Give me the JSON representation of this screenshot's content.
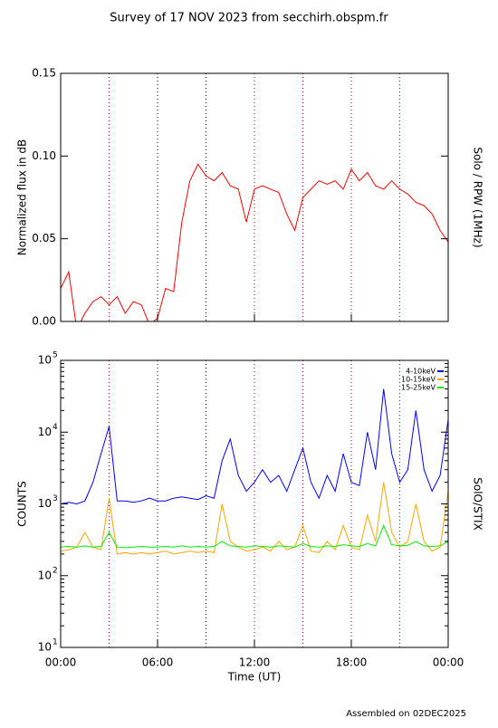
{
  "title": "Survey of 17 NOV 2023 from secchirh.obspm.fr",
  "footer": "Assembled on 02DEC2025",
  "chart_data": [
    {
      "type": "line",
      "ylabel": "Normalized flux in dB",
      "right_label": "Solo / RPW (1MHz)",
      "xlim": [
        0,
        24
      ],
      "xticks": [
        0,
        6,
        12,
        18,
        24
      ],
      "vlines": [
        3,
        6,
        9,
        12,
        15,
        18,
        21
      ],
      "ylim": [
        0,
        0.15
      ],
      "yticks": [
        {
          "value": 0,
          "label": "0.00"
        },
        {
          "value": 0.05,
          "label": "0.05"
        },
        {
          "value": 0.1,
          "label": "0.10"
        },
        {
          "value": 0.15,
          "label": "0.15"
        }
      ],
      "x": [
        0,
        0.5,
        1,
        1.5,
        2,
        2.5,
        3,
        3.5,
        4,
        4.5,
        5,
        5.5,
        6,
        6.5,
        7,
        7.5,
        8,
        8.5,
        9,
        9.5,
        10,
        10.5,
        11,
        11.5,
        12,
        12.5,
        13,
        13.5,
        14,
        14.5,
        15,
        15.5,
        16,
        16.5,
        17,
        17.5,
        18,
        18.5,
        19,
        19.5,
        20,
        20.5,
        21,
        21.5,
        22,
        22.5,
        23,
        23.5,
        24
      ],
      "series": [
        {
          "color": "#ff0000",
          "values": [
            0.02,
            0.03,
            -0.005,
            0.005,
            0.012,
            0.015,
            0.01,
            0.015,
            0.005,
            0.012,
            0.01,
            -0.002,
            0.002,
            0.02,
            0.018,
            0.06,
            0.085,
            0.095,
            0.088,
            0.085,
            0.09,
            0.082,
            0.08,
            0.06,
            0.08,
            0.082,
            0.08,
            0.078,
            0.065,
            0.055,
            0.075,
            0.08,
            0.085,
            0.083,
            0.085,
            0.08,
            0.092,
            0.085,
            0.09,
            0.082,
            0.08,
            0.085,
            0.08,
            0.077,
            0.072,
            0.07,
            0.065,
            0.055,
            0.048
          ]
        }
      ]
    },
    {
      "type": "line",
      "log": true,
      "ylabel": "COUNTS",
      "right_label": "SolO/STIX",
      "xlabel": "Time (UT)",
      "legend": "upper right",
      "xlim": [
        0,
        24
      ],
      "xticks": [
        {
          "value": 0,
          "label": "00:00"
        },
        {
          "value": 6,
          "label": "06:00"
        },
        {
          "value": 12,
          "label": "12:00"
        },
        {
          "value": 18,
          "label": "18:00"
        },
        {
          "value": 24,
          "label": "00:00"
        }
      ],
      "vlines": [
        3,
        6,
        9,
        12,
        15,
        18,
        21
      ],
      "ylim": [
        10,
        100000
      ],
      "yticks": [
        {
          "value": 10,
          "label": "10",
          "exponent": "1"
        },
        {
          "value": 100,
          "label": "10",
          "exponent": "2"
        },
        {
          "value": 1000,
          "label": "10",
          "exponent": "3"
        },
        {
          "value": 10000,
          "label": "10",
          "exponent": "4"
        },
        {
          "value": 100000,
          "label": "10",
          "exponent": "5"
        }
      ],
      "x": [
        0,
        0.5,
        1,
        1.5,
        2,
        2.5,
        3,
        3.5,
        4,
        4.5,
        5,
        5.5,
        6,
        6.5,
        7,
        7.5,
        8,
        8.5,
        9,
        9.5,
        10,
        10.5,
        11,
        11.5,
        12,
        12.5,
        13,
        13.5,
        14,
        14.5,
        15,
        15.5,
        16,
        16.5,
        17,
        17.5,
        18,
        18.5,
        19,
        19.5,
        20,
        20.5,
        21,
        21.5,
        22,
        22.5,
        23,
        23.5,
        24
      ],
      "series": [
        {
          "name": "4-10keV",
          "color": "#0000ff",
          "values": [
            1000,
            1050,
            1000,
            1100,
            2000,
            5000,
            12000,
            1100,
            1100,
            1050,
            1100,
            1200,
            1100,
            1100,
            1200,
            1250,
            1200,
            1150,
            1300,
            1200,
            4000,
            8000,
            2500,
            1500,
            2000,
            3000,
            2000,
            2500,
            1500,
            3000,
            6000,
            2000,
            1200,
            2500,
            1500,
            5000,
            2000,
            1800,
            10000,
            3000,
            40000,
            5000,
            2000,
            3000,
            20000,
            3000,
            1500,
            2500,
            15000
          ]
        },
        {
          "name": "10-15keV",
          "color": "#ffa500",
          "values": [
            220,
            230,
            250,
            400,
            250,
            230,
            1200,
            200,
            210,
            200,
            210,
            200,
            210,
            220,
            200,
            210,
            220,
            210,
            220,
            210,
            1000,
            300,
            250,
            220,
            230,
            250,
            220,
            300,
            230,
            250,
            500,
            220,
            210,
            300,
            230,
            500,
            250,
            230,
            700,
            300,
            2000,
            400,
            250,
            300,
            1000,
            300,
            220,
            250,
            1500
          ]
        },
        {
          "name": "15-25keV",
          "color": "#00ee00",
          "values": [
            250,
            255,
            250,
            260,
            250,
            255,
            400,
            250,
            245,
            250,
            255,
            250,
            250,
            255,
            250,
            260,
            250,
            255,
            250,
            255,
            300,
            260,
            255,
            250,
            260,
            255,
            250,
            260,
            255,
            250,
            280,
            255,
            250,
            260,
            255,
            270,
            260,
            255,
            280,
            260,
            500,
            270,
            260,
            265,
            300,
            260,
            255,
            260,
            300
          ]
        }
      ]
    }
  ]
}
